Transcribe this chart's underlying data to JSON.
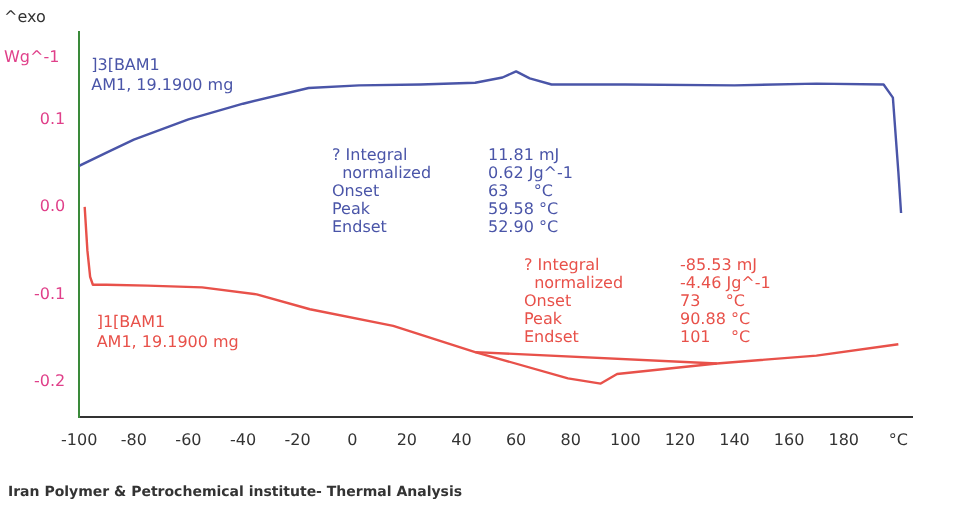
{
  "chart_data": {
    "type": "line",
    "ylabel": "Wg^-1",
    "xlim": [
      -100,
      205
    ],
    "ylim": [
      -0.24,
      0.2
    ],
    "xticks": [
      -100,
      -80,
      -60,
      -40,
      -20,
      0,
      20,
      40,
      60,
      80,
      100,
      120,
      140,
      160,
      180,
      {
        "value": 200,
        "label": "°C"
      }
    ],
    "yticks": [
      {
        "value": -0.2,
        "label": "-0.2"
      },
      {
        "value": -0.1,
        "label": "-0.1"
      },
      {
        "value": 0,
        "label": "0.0"
      },
      {
        "value": 0.1,
        "label": "0.1"
      }
    ],
    "marker": "none",
    "line_style": "solid",
    "legend": false,
    "series": [
      {
        "name": "]3[BAM1",
        "color": "#4a55a8",
        "x": [
          -100,
          -90,
          -80,
          -60,
          -40,
          -16,
          2.5,
          25,
          45,
          55,
          60,
          65,
          73,
          100,
          140,
          170,
          194.6,
          198,
          200,
          201
        ],
        "values": [
          0.047,
          0.062,
          0.077,
          0.1,
          0.118,
          0.136,
          0.139,
          0.14,
          0.142,
          0.148,
          0.155,
          0.147,
          0.14,
          0.14,
          0.139,
          0.141,
          0.14,
          0.125,
          0.04,
          -0.007
        ]
      },
      {
        "name": "]1[BAM1",
        "color": "#e8514a",
        "x": [
          -98,
          -97,
          -96,
          -95,
          -90,
          -75,
          -55,
          -35,
          -15.5,
          15,
          45,
          79,
          91,
          97,
          133.5,
          170,
          200
        ],
        "values": [
          0.0,
          -0.05,
          -0.08,
          -0.089,
          -0.089,
          -0.09,
          -0.092,
          -0.1,
          -0.117,
          -0.136,
          -0.166,
          -0.196,
          -0.202,
          -0.191,
          -0.179,
          -0.17,
          -0.157
        ]
      },
      {
        "color": "#e8514a",
        "x": [
          45,
          133.5
        ],
        "values": [
          -0.166,
          -0.179
        ]
      }
    ],
    "annotations": [
      "^exo",
      "AM1, 19.1900 mg",
      "AM1, 19.1900 mg",
      "? Integral\t11.81 mJ\n  normalized\t0.62 Jg^-1\nOnset\t63     °C\nPeak\t59.58 °C\nEndset\t52.90 °C",
      "? Integral\t-85.53 mJ\n  normalized\t-4.46 Jg^-1\nOnset\t73     °C\nPeak\t90.88 °C\nEndset\t101    °C",
      "Iran Polymer & Petrochemical institute- Thermal Analysis"
    ]
  }
}
